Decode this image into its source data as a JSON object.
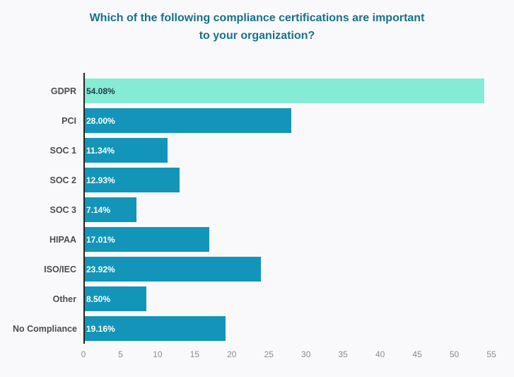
{
  "chart_data": {
    "type": "bar",
    "orientation": "horizontal",
    "title": "Which of the following compliance certifications are important to your organization?",
    "categories": [
      "GDPR",
      "PCI",
      "SOC 1",
      "SOC 2",
      "SOC 3",
      "HIPAA",
      "ISO/IEC",
      "Other",
      "No Compliance"
    ],
    "values": [
      54.08,
      28.0,
      11.34,
      12.93,
      7.14,
      17.01,
      23.92,
      8.5,
      19.16
    ],
    "value_labels": [
      "54.08%",
      "28.00%",
      "11.34%",
      "12.93%",
      "7.14%",
      "17.01%",
      "23.92%",
      "8.50%",
      "19.16%"
    ],
    "xlabel": "",
    "ylabel": "",
    "xlim": [
      0,
      55
    ],
    "ticks": [
      0,
      5,
      10,
      15,
      20,
      25,
      30,
      35,
      40,
      45,
      50,
      55
    ],
    "grid": false,
    "legend": false,
    "colors": {
      "bar": "#1395BA",
      "highlight_bar": "#86EBD4",
      "value_on_highlight": "#1F3B4D",
      "value_on_bar": "#FFFFFF",
      "title": "#16718C",
      "category_label": "#4D4D4D",
      "tick_label": "#8C8C8C",
      "axis_line": "#222222",
      "background": "#F9F9FB"
    }
  }
}
